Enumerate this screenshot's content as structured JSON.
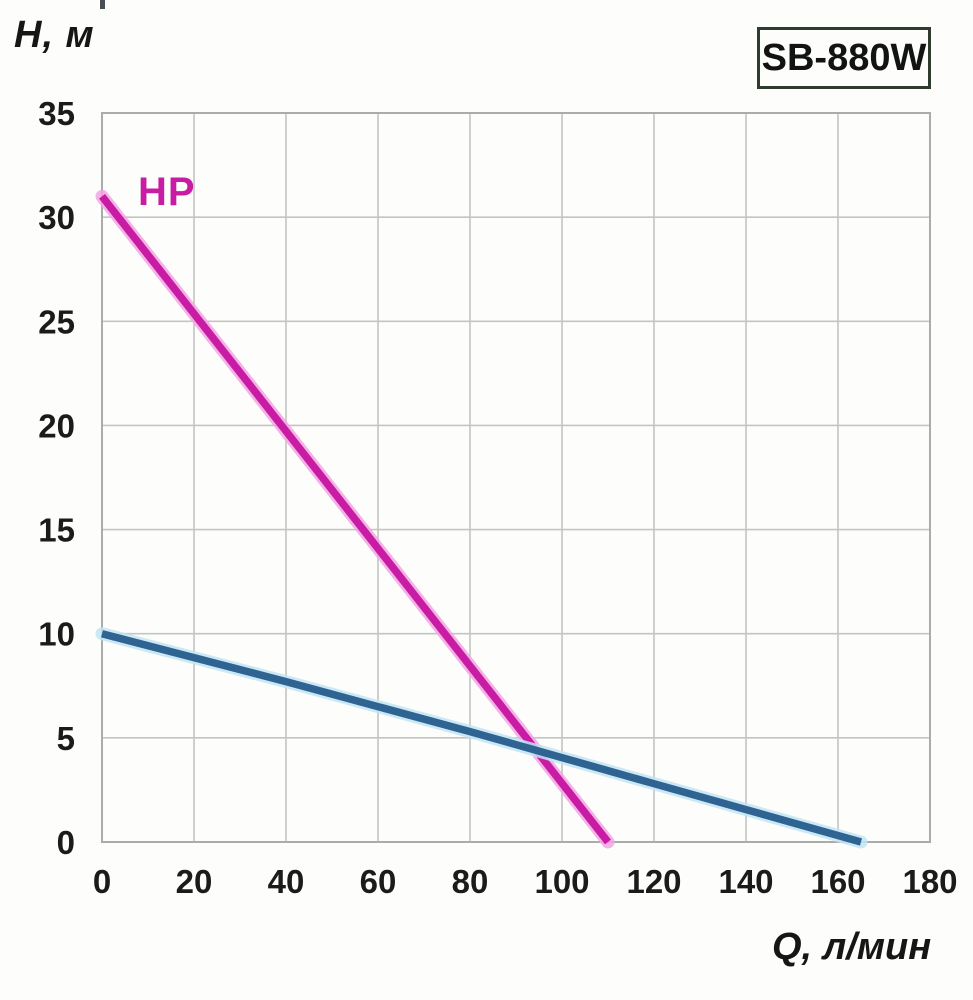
{
  "header": {
    "model_badge": "SB-880W"
  },
  "chart_data": {
    "type": "line",
    "title": "",
    "xlabel": "Q, л/мин",
    "ylabel": "H, м",
    "xlim": [
      0,
      180
    ],
    "ylim": [
      0,
      35
    ],
    "x_ticks": [
      0,
      20,
      40,
      60,
      80,
      100,
      120,
      140,
      160,
      180
    ],
    "y_ticks": [
      0,
      5,
      10,
      15,
      20,
      25,
      30,
      35
    ],
    "grid": true,
    "legend_position": "none",
    "series": [
      {
        "name": "hp-curve",
        "label": "HP",
        "color": "#c81ca5",
        "halo_color": "#f2a4e2",
        "points": [
          [
            0,
            31
          ],
          [
            110,
            0
          ]
        ]
      },
      {
        "name": "flow-head-curve",
        "label": "",
        "color": "#2f6492",
        "halo_color": "#c2e4f3",
        "points": [
          [
            0,
            10
          ],
          [
            40,
            7.7
          ],
          [
            80,
            5.3
          ],
          [
            120,
            2.8
          ],
          [
            165,
            0
          ]
        ]
      }
    ],
    "theme": {
      "grid_color": "#c3c5c3",
      "frame_color": "#a9aca9",
      "tick_text_color": "#1b1b1b",
      "background": "#fdfefb"
    }
  }
}
